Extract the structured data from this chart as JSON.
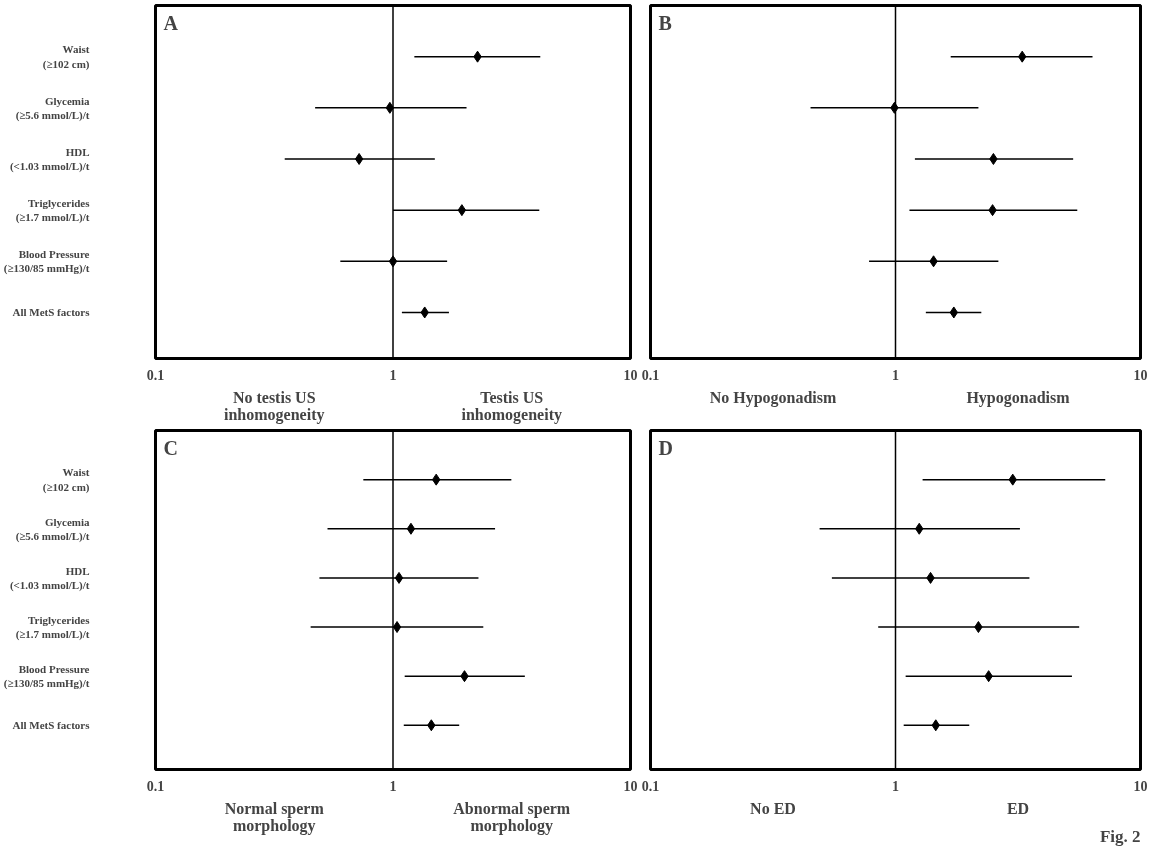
{
  "chart_data": [
    {
      "type": "scatter",
      "orientation": "horizontal",
      "title": "A",
      "categories": [
        "Waist\n(≥102 cm)",
        "Glycemia\n(≥5.6 mmol/L)/t",
        "HDL\n(<1.03 mmol/L)/t",
        "Triglycerides\n(≥1.7 mmol/L)/t",
        "Blood Pressure\n(≥130/85 mmHg)/t",
        "All MetS factors"
      ],
      "values": [
        2.27,
        0.97,
        0.72,
        1.95,
        1.0,
        1.36
      ],
      "errors": [
        [
          1.23,
          4.17
        ],
        [
          0.47,
          2.04
        ],
        [
          0.35,
          1.5
        ],
        [
          1.0,
          4.13
        ],
        [
          0.6,
          1.69
        ],
        [
          1.09,
          1.72
        ]
      ],
      "color": "#000000",
      "marker": "diamond",
      "log": "x",
      "grid": false,
      "xlim": [
        0.1,
        10
      ],
      "xticks": [
        0.1,
        1,
        10
      ],
      "ref_lines": [
        {
          "axis": "x",
          "value": 1,
          "color": "#000000"
        }
      ],
      "annotations": [
        "No testis US\ninhomogeneity",
        "Testis US\ninhomogeneity"
      ]
    },
    {
      "type": "scatter",
      "orientation": "horizontal",
      "title": "B",
      "categories": [
        null,
        null,
        null,
        null,
        null,
        null
      ],
      "values": [
        3.29,
        0.99,
        2.51,
        2.49,
        1.43,
        1.73
      ],
      "errors": [
        [
          1.68,
          6.37
        ],
        [
          0.45,
          2.18
        ],
        [
          1.2,
          5.31
        ],
        [
          1.14,
          5.52
        ],
        [
          0.78,
          2.63
        ],
        [
          1.33,
          2.24
        ]
      ],
      "color": "#000000",
      "marker": "diamond",
      "log": "x",
      "grid": false,
      "xlim": [
        0.1,
        10
      ],
      "xticks": [
        0.1,
        1,
        10
      ],
      "tick_labels": "x",
      "ref_lines": [
        {
          "axis": "x",
          "value": 1,
          "color": "#000000"
        }
      ],
      "annotations": [
        "No Hypogonadism",
        "Hypogonadism"
      ]
    },
    {
      "type": "scatter",
      "orientation": "horizontal",
      "title": "C",
      "categories": [
        "Waist\n(≥102 cm)",
        "Glycemia\n(≥5.6 mmol/L)/t",
        "HDL\n(<1.03 mmol/L)/t",
        "Triglycerides\n(≥1.7 mmol/L)/t",
        "Blood Pressure\n(≥130/85 mmHg)/t",
        "All MetS factors"
      ],
      "values": [
        1.52,
        1.19,
        1.06,
        1.04,
        2.0,
        1.45
      ],
      "errors": [
        [
          0.75,
          3.15
        ],
        [
          0.53,
          2.69
        ],
        [
          0.49,
          2.29
        ],
        [
          0.45,
          2.4
        ],
        [
          1.12,
          3.59
        ],
        [
          1.11,
          1.9
        ]
      ],
      "color": "#000000",
      "marker": "diamond",
      "log": "x",
      "grid": false,
      "xlim": [
        0.1,
        10
      ],
      "xticks": [
        0.1,
        1,
        10
      ],
      "ref_lines": [
        {
          "axis": "x",
          "value": 1,
          "color": "#000000"
        }
      ],
      "annotations": [
        "Normal sperm\nmorphology",
        "Abnormal sperm\nmorphology"
      ]
    },
    {
      "type": "scatter",
      "orientation": "horizontal",
      "title": "D",
      "categories": [
        null,
        null,
        null,
        null,
        null,
        null
      ],
      "values": [
        3.01,
        1.25,
        1.39,
        2.18,
        2.4,
        1.46
      ],
      "errors": [
        [
          1.29,
          7.18
        ],
        [
          0.49,
          3.22
        ],
        [
          0.55,
          3.52
        ],
        [
          0.85,
          5.62
        ],
        [
          1.1,
          5.25
        ],
        [
          1.08,
          2.0
        ]
      ],
      "color": "#000000",
      "marker": "diamond",
      "log": "x",
      "grid": false,
      "xlim": [
        0.1,
        10
      ],
      "xticks": [
        0.1,
        1,
        10
      ],
      "tick_labels": "x",
      "ref_lines": [
        {
          "axis": "x",
          "value": 1,
          "color": "#000000"
        }
      ],
      "annotations": [
        "No ED",
        "ED",
        "Fig. 2"
      ]
    }
  ]
}
